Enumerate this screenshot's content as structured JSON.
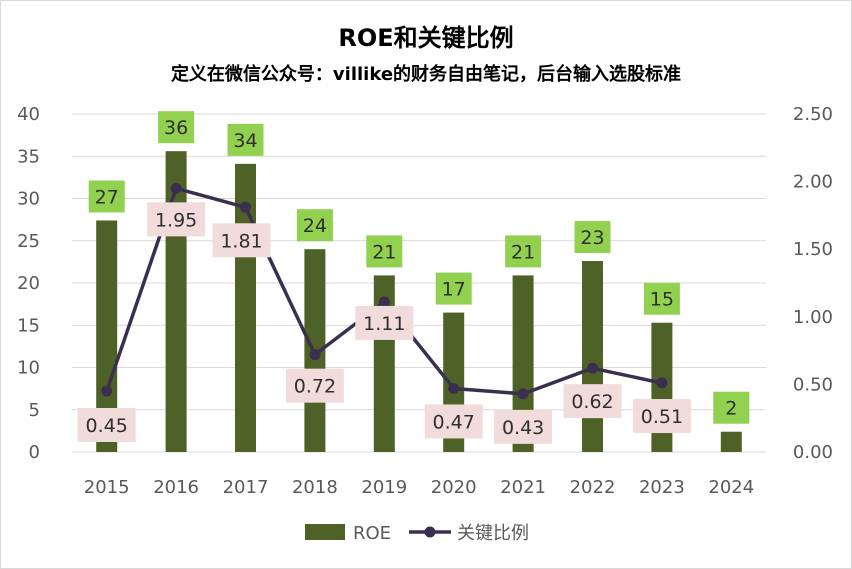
{
  "title": "ROE和关键比例",
  "subtitle": "定义在微信公众号：villike的财务自由笔记，后台输入选股标准",
  "colors": {
    "bar": "#4e6228",
    "bar_label_bg": "#92d050",
    "line": "#3b2f4f",
    "line_label_bg": "#f2dcdb",
    "grid": "#d9d9d9",
    "axis_text": "#595959"
  },
  "chart_data": {
    "type": "bar+line",
    "title": "ROE和关键比例",
    "subtitle": "定义在微信公众号：villike的财务自由笔记，后台输入选股标准",
    "categories": [
      "2015",
      "2016",
      "2017",
      "2018",
      "2019",
      "2020",
      "2021",
      "2022",
      "2023",
      "2024"
    ],
    "series": [
      {
        "name": "ROE",
        "type": "bar",
        "axis": "left",
        "values": [
          27.4,
          35.6,
          34.1,
          24.0,
          20.9,
          16.5,
          20.9,
          22.6,
          15.3,
          2.4
        ],
        "labels": [
          "27",
          "36",
          "34",
          "24",
          "21",
          "17",
          "21",
          "23",
          "15",
          "2"
        ]
      },
      {
        "name": "关键比例",
        "type": "line",
        "axis": "right",
        "values": [
          0.45,
          1.95,
          1.81,
          0.72,
          1.11,
          0.47,
          0.43,
          0.62,
          0.51,
          null
        ],
        "labels": [
          "0.45",
          "1.95",
          "1.81",
          "0.72",
          "1.11",
          "0.47",
          "0.43",
          "0.62",
          "0.51",
          ""
        ]
      }
    ],
    "y_left": {
      "min": 0,
      "max": 40,
      "ticks": [
        "0",
        "5",
        "10",
        "15",
        "20",
        "25",
        "30",
        "35",
        "40"
      ]
    },
    "y_right": {
      "min": 0,
      "max": 2.5,
      "ticks": [
        "0.00",
        "0.50",
        "1.00",
        "1.50",
        "2.00",
        "2.50"
      ]
    },
    "grid": true,
    "legend": {
      "position": "bottom",
      "entries": [
        "ROE",
        "关键比例"
      ]
    }
  }
}
